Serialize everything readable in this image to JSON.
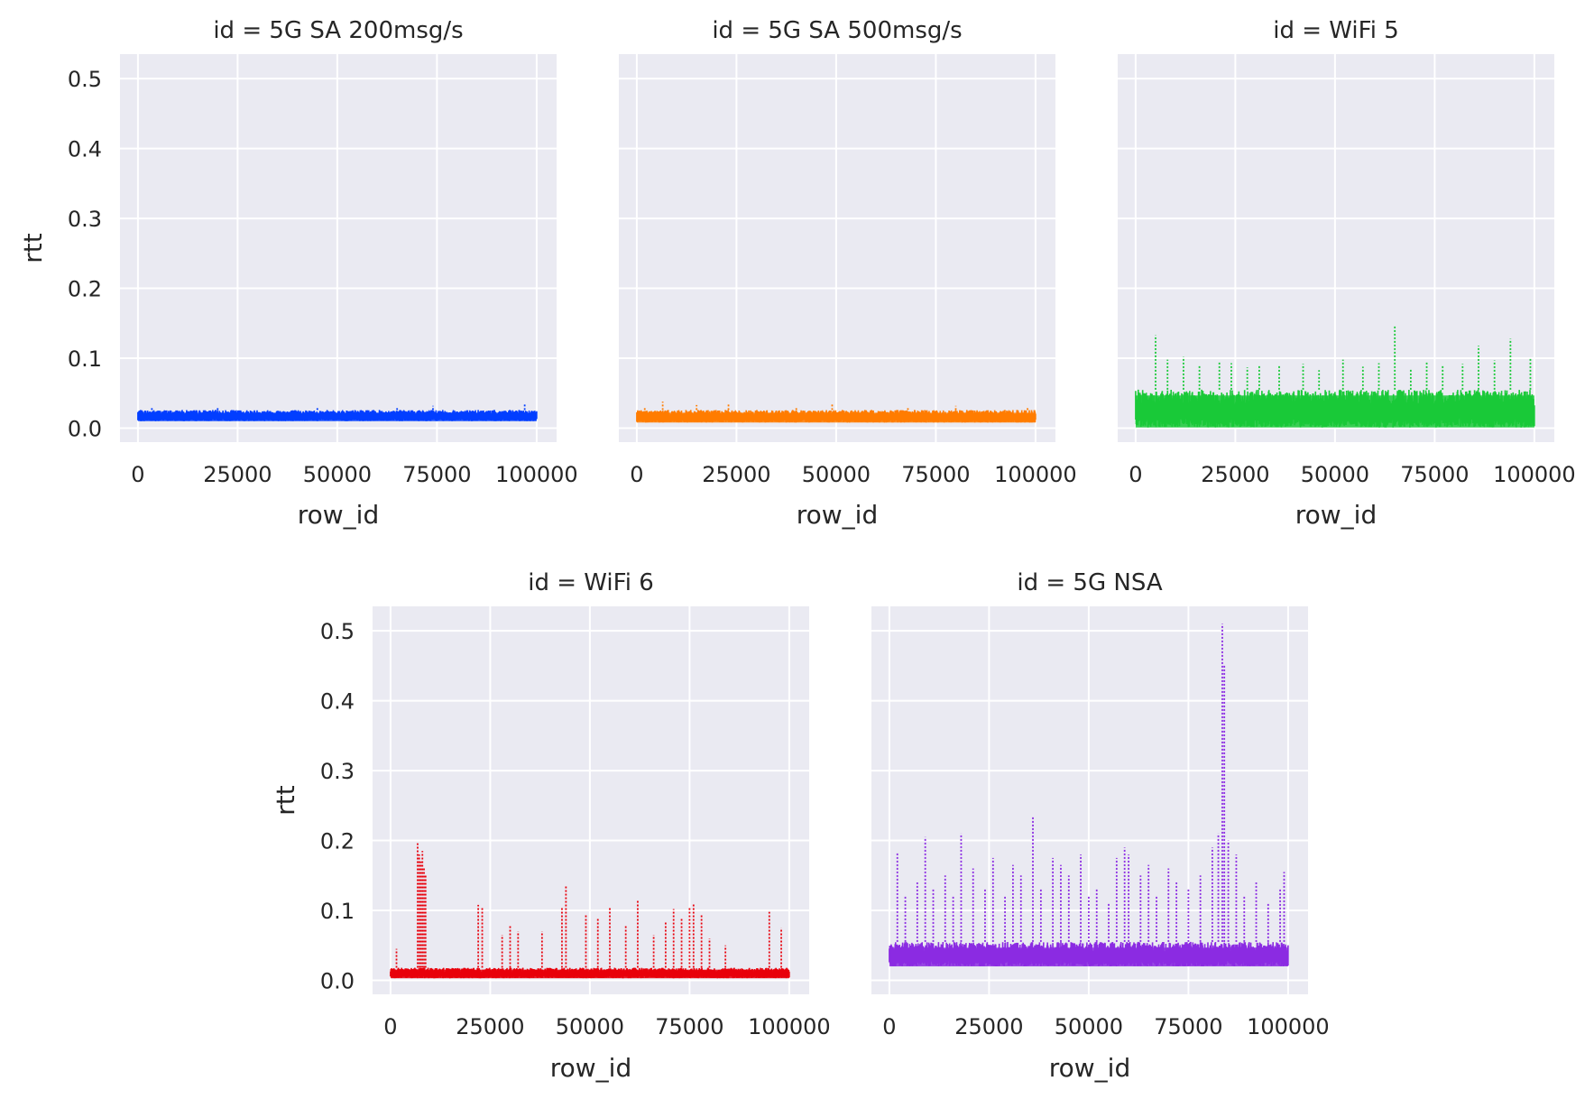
{
  "figure": {
    "background": "#ffffff",
    "panel_bg": "#eaeaf2",
    "grid_color": "#ffffff"
  },
  "chart_data": [
    {
      "type": "line",
      "title": "id = 5G SA 200msg/s",
      "xlabel": "row_id",
      "ylabel": "rtt",
      "x_ticks": [
        "0",
        "25000",
        "50000",
        "75000",
        "100000"
      ],
      "y_ticks": [
        "0.0",
        "0.1",
        "0.2",
        "0.3",
        "0.4",
        "0.5"
      ],
      "xlim": [
        -4500,
        105000
      ],
      "ylim": [
        -0.02,
        0.535
      ],
      "grid": true,
      "color": "#023eff",
      "series": [
        {
          "band": [
            0.01,
            0.026
          ],
          "spikes": [
            [
              3500,
              0.031
            ],
            [
              20000,
              0.03
            ],
            [
              45000,
              0.029
            ],
            [
              65000,
              0.03
            ],
            [
              74000,
              0.032
            ],
            [
              97000,
              0.034
            ]
          ]
        }
      ]
    },
    {
      "type": "line",
      "title": "id = 5G SA 500msg/s",
      "xlabel": "row_id",
      "ylabel": "",
      "x_ticks": [
        "0",
        "25000",
        "50000",
        "75000",
        "100000"
      ],
      "y_ticks": [],
      "xlim": [
        -4500,
        105000
      ],
      "ylim": [
        -0.02,
        0.535
      ],
      "grid": true,
      "color": "#ff7c00",
      "series": [
        {
          "band": [
            0.008,
            0.026
          ],
          "spikes": [
            [
              2000,
              0.03
            ],
            [
              6500,
              0.038
            ],
            [
              15000,
              0.033
            ],
            [
              23000,
              0.034
            ],
            [
              40000,
              0.031
            ],
            [
              49000,
              0.036
            ],
            [
              68000,
              0.031
            ],
            [
              80000,
              0.032
            ],
            [
              98000,
              0.03
            ]
          ]
        }
      ]
    },
    {
      "type": "line",
      "title": "id = WiFi 5",
      "xlabel": "row_id",
      "ylabel": "",
      "x_ticks": [
        "0",
        "25000",
        "50000",
        "75000",
        "100000"
      ],
      "y_ticks": [],
      "xlim": [
        -4500,
        105000
      ],
      "ylim": [
        -0.02,
        0.535
      ],
      "grid": true,
      "color": "#1ac938",
      "series": [
        {
          "band": [
            0.001,
            0.055
          ],
          "spikes": [
            [
              5000,
              0.133
            ],
            [
              8000,
              0.098
            ],
            [
              12000,
              0.102
            ],
            [
              16000,
              0.09
            ],
            [
              21000,
              0.095
            ],
            [
              24000,
              0.093
            ],
            [
              28000,
              0.087
            ],
            [
              31000,
              0.091
            ],
            [
              36000,
              0.09
            ],
            [
              42000,
              0.092
            ],
            [
              46000,
              0.083
            ],
            [
              52000,
              0.098
            ],
            [
              57000,
              0.088
            ],
            [
              61000,
              0.093
            ],
            [
              65000,
              0.148
            ],
            [
              69000,
              0.085
            ],
            [
              73000,
              0.095
            ],
            [
              77000,
              0.09
            ],
            [
              82000,
              0.092
            ],
            [
              86000,
              0.118
            ],
            [
              90000,
              0.097
            ],
            [
              94000,
              0.128
            ],
            [
              99000,
              0.099
            ]
          ]
        }
      ]
    },
    {
      "type": "line",
      "title": "id = WiFi 6",
      "xlabel": "row_id",
      "ylabel": "rtt",
      "x_ticks": [
        "0",
        "25000",
        "50000",
        "75000",
        "100000"
      ],
      "y_ticks": [
        "0.0",
        "0.1",
        "0.2",
        "0.3",
        "0.4",
        "0.5"
      ],
      "xlim": [
        -4500,
        105000
      ],
      "ylim": [
        -0.02,
        0.535
      ],
      "grid": true,
      "color": "#e8000b",
      "series": [
        {
          "band": [
            0.003,
            0.018
          ],
          "spikes": [
            [
              1500,
              0.045
            ],
            [
              6800,
              0.196
            ],
            [
              7200,
              0.18
            ],
            [
              7600,
              0.17
            ],
            [
              8000,
              0.185
            ],
            [
              8400,
              0.16
            ],
            [
              8800,
              0.15
            ],
            [
              22000,
              0.108
            ],
            [
              23000,
              0.105
            ],
            [
              28000,
              0.065
            ],
            [
              30000,
              0.08
            ],
            [
              32000,
              0.07
            ],
            [
              38000,
              0.07
            ],
            [
              43000,
              0.105
            ],
            [
              44000,
              0.135
            ],
            [
              49000,
              0.095
            ],
            [
              52000,
              0.09
            ],
            [
              55000,
              0.105
            ],
            [
              59000,
              0.08
            ],
            [
              62000,
              0.115
            ],
            [
              66000,
              0.065
            ],
            [
              69000,
              0.085
            ],
            [
              71000,
              0.102
            ],
            [
              73000,
              0.09
            ],
            [
              75000,
              0.105
            ],
            [
              76000,
              0.11
            ],
            [
              78000,
              0.095
            ],
            [
              80000,
              0.06
            ],
            [
              84000,
              0.05
            ],
            [
              95000,
              0.098
            ],
            [
              98000,
              0.075
            ]
          ]
        }
      ]
    },
    {
      "type": "line",
      "title": "id = 5G NSA",
      "xlabel": "row_id",
      "ylabel": "",
      "x_ticks": [
        "0",
        "25000",
        "50000",
        "75000",
        "100000"
      ],
      "y_ticks": [],
      "xlim": [
        -4500,
        105000
      ],
      "ylim": [
        -0.02,
        0.535
      ],
      "grid": true,
      "color": "#8b2be2",
      "series": [
        {
          "band": [
            0.02,
            0.055
          ],
          "spikes": [
            [
              2000,
              0.183
            ],
            [
              4000,
              0.12
            ],
            [
              7000,
              0.14
            ],
            [
              9000,
              0.205
            ],
            [
              11000,
              0.13
            ],
            [
              14000,
              0.15
            ],
            [
              16000,
              0.12
            ],
            [
              18000,
              0.21
            ],
            [
              21000,
              0.16
            ],
            [
              24000,
              0.13
            ],
            [
              26000,
              0.175
            ],
            [
              29000,
              0.12
            ],
            [
              31000,
              0.165
            ],
            [
              33000,
              0.15
            ],
            [
              36000,
              0.235
            ],
            [
              38000,
              0.13
            ],
            [
              41000,
              0.175
            ],
            [
              43000,
              0.165
            ],
            [
              45000,
              0.15
            ],
            [
              48000,
              0.18
            ],
            [
              50000,
              0.12
            ],
            [
              52000,
              0.13
            ],
            [
              55000,
              0.11
            ],
            [
              57000,
              0.175
            ],
            [
              59000,
              0.19
            ],
            [
              60000,
              0.18
            ],
            [
              63000,
              0.15
            ],
            [
              65000,
              0.165
            ],
            [
              67000,
              0.12
            ],
            [
              70000,
              0.16
            ],
            [
              72000,
              0.14
            ],
            [
              75000,
              0.13
            ],
            [
              78000,
              0.15
            ],
            [
              81000,
              0.19
            ],
            [
              82500,
              0.21
            ],
            [
              83500,
              0.51
            ],
            [
              84000,
              0.45
            ],
            [
              85000,
              0.2
            ],
            [
              87000,
              0.18
            ],
            [
              89000,
              0.12
            ],
            [
              92000,
              0.14
            ],
            [
              95000,
              0.11
            ],
            [
              98000,
              0.13
            ],
            [
              99000,
              0.155
            ]
          ]
        }
      ]
    }
  ]
}
